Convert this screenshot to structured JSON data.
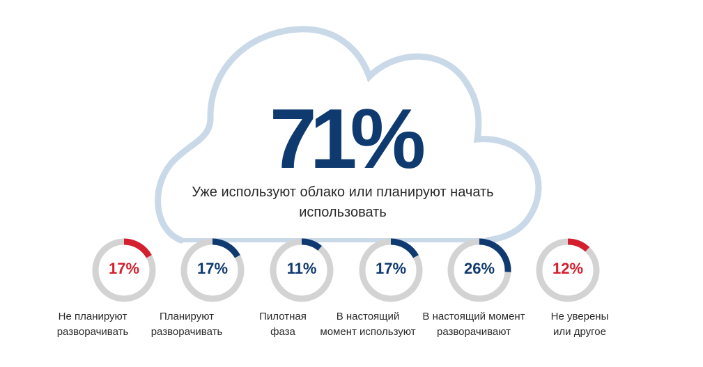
{
  "headline": {
    "value": "71%",
    "caption_line1": "Уже используют облако или планируют начать",
    "caption_line2": "использовать"
  },
  "colors": {
    "navy": "#0f3a6f",
    "red": "#d4202e",
    "track": "#d3d3d3",
    "cloud_outline": "#c9d9e8",
    "text": "#2a2a2a"
  },
  "chart_data": {
    "type": "donut",
    "categories": [
      "Не планируют разворачивать",
      "Планируют разворачивать",
      "Пилотная фаза",
      "В настоящий момент используют",
      "В настоящий момент разворачивают",
      "Не уверены или другое"
    ],
    "values": [
      17,
      17,
      11,
      17,
      26,
      12
    ],
    "unit": "%",
    "items": [
      {
        "value": 17,
        "label": "17%",
        "color": "#d4202e",
        "line1": "Не планируют",
        "line2": "разворачивать"
      },
      {
        "value": 17,
        "label": "17%",
        "color": "#0f3a6f",
        "line1": "Планируют",
        "line2": "разворачивать"
      },
      {
        "value": 11,
        "label": "11%",
        "color": "#0f3a6f",
        "line1": "Пилотная",
        "line2": "фаза"
      },
      {
        "value": 17,
        "label": "17%",
        "color": "#0f3a6f",
        "line1": "В настоящий",
        "line2": "момент используют"
      },
      {
        "value": 26,
        "label": "26%",
        "color": "#0f3a6f",
        "line1": "В настоящий момент",
        "line2": "разворачивают"
      },
      {
        "value": 12,
        "label": "12%",
        "color": "#d4202e",
        "line1": "Не уверены",
        "line2": "или другое"
      }
    ]
  }
}
